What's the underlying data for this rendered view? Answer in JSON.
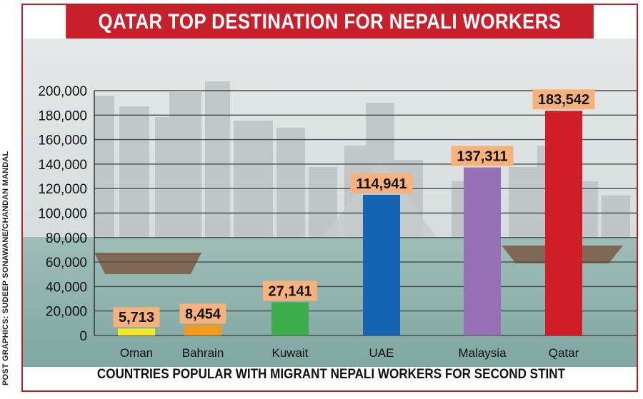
{
  "title": "QATAR TOP DESTINATION FOR NEPALI WORKERS",
  "subtitle": "COUNTRIES POPULAR WITH MIGRANT NEPALI WORKERS FOR SECOND STINT",
  "credit": "POST GRAPHICS: SUDEEP SONAWANE/CHANDAN MANDAL",
  "colors": {
    "title_bg": "#c8202a",
    "label_bg": "#f6b27a",
    "sky": "#d6dbdb",
    "sea": "#8fb1ac"
  },
  "chart_data": {
    "type": "bar",
    "categories": [
      "Oman",
      "Bahrain",
      "Kuwait",
      "UAE",
      "Malaysia",
      "Qatar"
    ],
    "values": [
      5713,
      8454,
      27141,
      114941,
      137311,
      183542
    ],
    "value_labels": [
      "5,713",
      "8,454",
      "27,141",
      "114,941",
      "137,311",
      "183,542"
    ],
    "bar_colors": [
      "#f4e62a",
      "#f39a1e",
      "#3cad4a",
      "#1665b2",
      "#9670b5",
      "#d01e27"
    ],
    "ylim": [
      0,
      200000
    ],
    "yticks": [
      0,
      20000,
      40000,
      60000,
      80000,
      100000,
      120000,
      140000,
      160000,
      180000,
      200000
    ],
    "ytick_labels": [
      "0",
      "20,000",
      "40,000",
      "60,000",
      "80,000",
      "100,000",
      "120,000",
      "140,000",
      "160,000",
      "180,000",
      "200,000"
    ],
    "grid": true
  }
}
